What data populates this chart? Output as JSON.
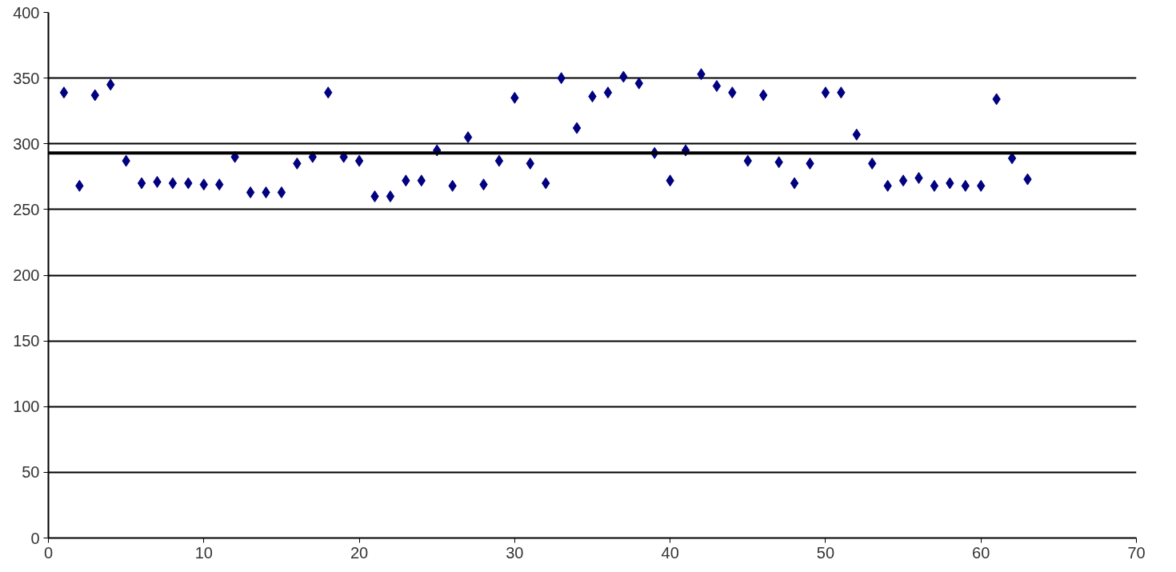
{
  "chart_data": {
    "type": "scatter",
    "x": [
      1,
      2,
      3,
      4,
      5,
      6,
      7,
      8,
      9,
      10,
      11,
      12,
      13,
      14,
      15,
      16,
      17,
      18,
      19,
      20,
      21,
      22,
      23,
      24,
      25,
      26,
      27,
      28,
      29,
      30,
      31,
      32,
      33,
      34,
      35,
      36,
      37,
      38,
      39,
      40,
      41,
      42,
      43,
      44,
      45,
      46,
      47,
      48,
      49,
      50,
      51,
      52,
      53,
      54,
      55,
      56,
      57,
      58,
      59,
      60,
      61,
      62,
      63
    ],
    "series": [
      {
        "color": "#000080",
        "values": [
          339,
          268,
          337,
          345,
          287,
          270,
          271,
          270,
          270,
          269,
          269,
          290,
          263,
          263,
          263,
          285,
          290,
          339,
          290,
          287,
          260,
          260,
          272,
          272,
          295,
          268,
          305,
          269,
          287,
          335,
          285,
          270,
          350,
          312,
          336,
          339,
          351,
          346,
          293,
          272,
          295,
          353,
          344,
          339,
          287,
          337,
          286,
          270,
          285,
          339,
          339,
          307,
          285,
          268,
          272,
          274,
          268,
          270,
          268,
          268,
          334,
          289,
          273
        ]
      }
    ],
    "xlim": [
      0,
      70
    ],
    "xticks": [
      0,
      10,
      20,
      30,
      40,
      50,
      60,
      70
    ],
    "ylim": [
      0,
      400
    ],
    "yticks": [
      0,
      50,
      100,
      150,
      200,
      250,
      300,
      350,
      400
    ],
    "grid": "y",
    "marker": "diamond",
    "ref_lines": [
      {
        "axis": "y",
        "value": 293,
        "color": "#000000"
      }
    ]
  }
}
